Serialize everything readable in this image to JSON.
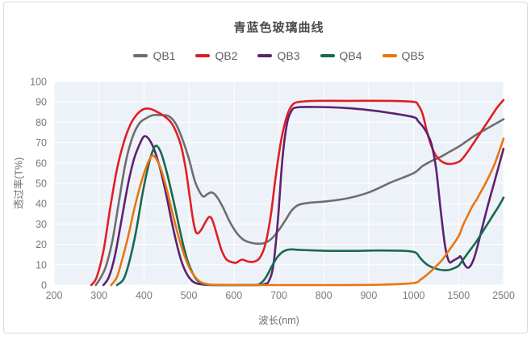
{
  "frame": {
    "border_color": "#dcdcdc",
    "background": "#ffffff"
  },
  "chart_data": {
    "type": "line",
    "title": "青蓝色玻璃曲线",
    "xlabel": "波长(nm)",
    "ylabel": "透过率(T%)",
    "legend_position": "top",
    "legend": [
      "QB1",
      "QB2",
      "QB3",
      "QB4",
      "QB5"
    ],
    "x_ticks": [
      200,
      300,
      400,
      500,
      600,
      700,
      800,
      900,
      1000,
      1500,
      2500
    ],
    "x_axis_scale": "ticks evenly spaced: 100nm per step to 1000, then 500, then 1000",
    "y_ticks": [
      0,
      10,
      20,
      30,
      40,
      50,
      60,
      70,
      80,
      90,
      100
    ],
    "ylim": [
      0,
      100
    ],
    "grid": true,
    "plot_background": "#edf2f8",
    "gridline_color": "#ffffff",
    "tick_label_color": "#76797e",
    "series": [
      {
        "name": "QB1",
        "color": "#6e6e6e",
        "points": [
          [
            293,
            0
          ],
          [
            302,
            3
          ],
          [
            315,
            9
          ],
          [
            330,
            22
          ],
          [
            345,
            42
          ],
          [
            360,
            61
          ],
          [
            375,
            73
          ],
          [
            390,
            79.5
          ],
          [
            405,
            82
          ],
          [
            420,
            83.5
          ],
          [
            440,
            83.5
          ],
          [
            455,
            83
          ],
          [
            470,
            79.5
          ],
          [
            485,
            72
          ],
          [
            500,
            62
          ],
          [
            512,
            52
          ],
          [
            522,
            46.5
          ],
          [
            532,
            43.5
          ],
          [
            542,
            44.8
          ],
          [
            550,
            45.5
          ],
          [
            560,
            44
          ],
          [
            575,
            38.5
          ],
          [
            590,
            31.5
          ],
          [
            605,
            26
          ],
          [
            620,
            22.5
          ],
          [
            635,
            21
          ],
          [
            655,
            20.3
          ],
          [
            670,
            20.8
          ],
          [
            685,
            23
          ],
          [
            700,
            27
          ],
          [
            715,
            32
          ],
          [
            730,
            37
          ],
          [
            745,
            39.5
          ],
          [
            770,
            40.5
          ],
          [
            800,
            41
          ],
          [
            850,
            42.5
          ],
          [
            900,
            45.5
          ],
          [
            950,
            50.5
          ],
          [
            1000,
            55
          ],
          [
            1100,
            58.5
          ],
          [
            1200,
            61
          ],
          [
            1300,
            63
          ],
          [
            1400,
            65.5
          ],
          [
            1500,
            68
          ],
          [
            1700,
            71
          ],
          [
            1900,
            74
          ],
          [
            2100,
            76.5
          ],
          [
            2300,
            79
          ],
          [
            2500,
            81.5
          ]
        ]
      },
      {
        "name": "QB2",
        "color": "#e01f24",
        "points": [
          [
            283,
            0
          ],
          [
            295,
            4
          ],
          [
            310,
            17
          ],
          [
            325,
            38
          ],
          [
            340,
            57
          ],
          [
            355,
            70
          ],
          [
            370,
            79
          ],
          [
            385,
            84
          ],
          [
            400,
            86.5
          ],
          [
            415,
            86.5
          ],
          [
            430,
            85
          ],
          [
            445,
            83
          ],
          [
            460,
            80
          ],
          [
            472,
            75
          ],
          [
            483,
            68
          ],
          [
            493,
            57
          ],
          [
            502,
            43
          ],
          [
            510,
            31
          ],
          [
            517,
            25.5
          ],
          [
            527,
            27
          ],
          [
            537,
            31
          ],
          [
            545,
            33.5
          ],
          [
            552,
            32
          ],
          [
            562,
            25
          ],
          [
            572,
            17.5
          ],
          [
            582,
            13
          ],
          [
            592,
            11.5
          ],
          [
            605,
            11
          ],
          [
            618,
            12.5
          ],
          [
            632,
            11.5
          ],
          [
            645,
            11.5
          ],
          [
            658,
            13.5
          ],
          [
            670,
            20
          ],
          [
            682,
            34
          ],
          [
            694,
            55
          ],
          [
            706,
            72
          ],
          [
            718,
            83
          ],
          [
            730,
            88.5
          ],
          [
            745,
            90
          ],
          [
            780,
            90.5
          ],
          [
            850,
            90.5
          ],
          [
            950,
            90.5
          ],
          [
            1000,
            90
          ],
          [
            1050,
            88.5
          ],
          [
            1100,
            84
          ],
          [
            1150,
            75
          ],
          [
            1200,
            68
          ],
          [
            1250,
            63.5
          ],
          [
            1320,
            60.5
          ],
          [
            1400,
            59.5
          ],
          [
            1500,
            60.5
          ],
          [
            1600,
            62.5
          ],
          [
            1750,
            67
          ],
          [
            1900,
            72
          ],
          [
            2050,
            77
          ],
          [
            2200,
            82
          ],
          [
            2350,
            87
          ],
          [
            2500,
            91
          ]
        ]
      },
      {
        "name": "QB3",
        "color": "#5e2170",
        "points": [
          [
            310,
            0
          ],
          [
            322,
            4
          ],
          [
            335,
            14
          ],
          [
            350,
            32
          ],
          [
            365,
            50
          ],
          [
            378,
            62
          ],
          [
            390,
            69
          ],
          [
            400,
            73
          ],
          [
            410,
            72
          ],
          [
            422,
            67
          ],
          [
            435,
            58
          ],
          [
            448,
            46
          ],
          [
            460,
            33
          ],
          [
            472,
            21
          ],
          [
            483,
            12
          ],
          [
            494,
            6
          ],
          [
            505,
            2.5
          ],
          [
            515,
            1
          ],
          [
            530,
            0.3
          ],
          [
            560,
            0
          ],
          [
            650,
            0
          ],
          [
            668,
            0.5
          ],
          [
            678,
            2
          ],
          [
            688,
            10
          ],
          [
            698,
            32
          ],
          [
            708,
            62
          ],
          [
            718,
            79
          ],
          [
            728,
            85.5
          ],
          [
            740,
            87.3
          ],
          [
            780,
            87.5
          ],
          [
            850,
            87
          ],
          [
            900,
            86
          ],
          [
            950,
            84.5
          ],
          [
            1000,
            82.5
          ],
          [
            1050,
            80.5
          ],
          [
            1100,
            78
          ],
          [
            1150,
            74.5
          ],
          [
            1200,
            69
          ],
          [
            1250,
            57
          ],
          [
            1300,
            37
          ],
          [
            1350,
            19
          ],
          [
            1395,
            11.5
          ],
          [
            1440,
            12
          ],
          [
            1500,
            13.5
          ],
          [
            1545,
            14
          ],
          [
            1620,
            10.5
          ],
          [
            1700,
            8.5
          ],
          [
            1780,
            10
          ],
          [
            1870,
            15
          ],
          [
            2000,
            26
          ],
          [
            2150,
            39
          ],
          [
            2300,
            51
          ],
          [
            2400,
            59
          ],
          [
            2500,
            67
          ]
        ]
      },
      {
        "name": "QB4",
        "color": "#176a4c",
        "points": [
          [
            340,
            0
          ],
          [
            355,
            3
          ],
          [
            368,
            12
          ],
          [
            382,
            26
          ],
          [
            396,
            44
          ],
          [
            408,
            57
          ],
          [
            418,
            65
          ],
          [
            427,
            68.5
          ],
          [
            438,
            65
          ],
          [
            450,
            56
          ],
          [
            462,
            45
          ],
          [
            474,
            33
          ],
          [
            486,
            21
          ],
          [
            497,
            12
          ],
          [
            508,
            6
          ],
          [
            518,
            2.5
          ],
          [
            530,
            0.8
          ],
          [
            545,
            0.2
          ],
          [
            560,
            0
          ],
          [
            645,
            0
          ],
          [
            660,
            1
          ],
          [
            672,
            4
          ],
          [
            684,
            9
          ],
          [
            696,
            13.5
          ],
          [
            710,
            16.5
          ],
          [
            725,
            17.5
          ],
          [
            745,
            17.3
          ],
          [
            780,
            17
          ],
          [
            820,
            16.8
          ],
          [
            870,
            16.8
          ],
          [
            920,
            17
          ],
          [
            980,
            16.8
          ],
          [
            1020,
            16
          ],
          [
            1060,
            14
          ],
          [
            1110,
            11.5
          ],
          [
            1170,
            9.5
          ],
          [
            1250,
            8
          ],
          [
            1330,
            7.3
          ],
          [
            1400,
            7.5
          ],
          [
            1450,
            8.3
          ],
          [
            1500,
            9.5
          ],
          [
            1600,
            12.5
          ],
          [
            1700,
            15.5
          ],
          [
            1800,
            18.5
          ],
          [
            1900,
            21.5
          ],
          [
            2000,
            25
          ],
          [
            2100,
            28.5
          ],
          [
            2200,
            32
          ],
          [
            2300,
            35.5
          ],
          [
            2400,
            39
          ],
          [
            2500,
            43
          ]
        ]
      },
      {
        "name": "QB5",
        "color": "#e8760f",
        "points": [
          [
            327,
            0
          ],
          [
            340,
            4
          ],
          [
            352,
            13
          ],
          [
            365,
            24
          ],
          [
            378,
            37
          ],
          [
            392,
            49
          ],
          [
            405,
            58
          ],
          [
            418,
            63.5
          ],
          [
            430,
            61
          ],
          [
            442,
            54
          ],
          [
            454,
            44
          ],
          [
            466,
            33
          ],
          [
            478,
            23
          ],
          [
            490,
            14.5
          ],
          [
            502,
            8
          ],
          [
            514,
            4
          ],
          [
            526,
            1.5
          ],
          [
            540,
            0.5
          ],
          [
            560,
            0.1
          ],
          [
            700,
            0
          ],
          [
            850,
            0
          ],
          [
            930,
            0.2
          ],
          [
            1000,
            1
          ],
          [
            1080,
            2.8
          ],
          [
            1160,
            5.5
          ],
          [
            1240,
            8.8
          ],
          [
            1320,
            12.5
          ],
          [
            1400,
            17.5
          ],
          [
            1500,
            24
          ],
          [
            1600,
            29.5
          ],
          [
            1700,
            34
          ],
          [
            1800,
            38.5
          ],
          [
            1900,
            42
          ],
          [
            2000,
            46
          ],
          [
            2100,
            50
          ],
          [
            2200,
            54.5
          ],
          [
            2300,
            59.5
          ],
          [
            2400,
            65.5
          ],
          [
            2500,
            72
          ]
        ]
      }
    ]
  }
}
